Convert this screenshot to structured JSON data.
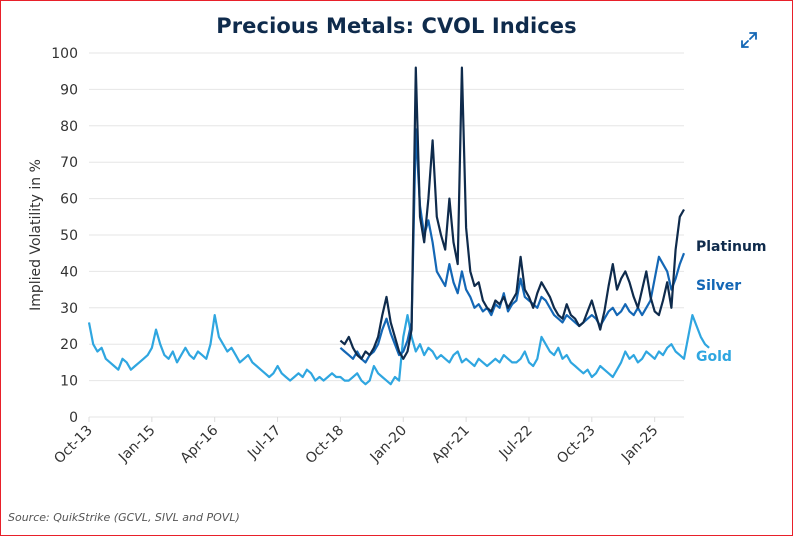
{
  "chart_data": {
    "type": "line",
    "title": "Precious Metals: CVOL Indices",
    "xlabel": "",
    "ylabel": "Implied Volatility in %",
    "ylim": [
      0,
      100
    ],
    "yticks": [
      0,
      10,
      20,
      30,
      40,
      50,
      60,
      70,
      80,
      90,
      100
    ],
    "xticks": [
      "Oct-13",
      "Jan-15",
      "Apr-16",
      "Jul-17",
      "Oct-18",
      "Jan-20",
      "Apr-21",
      "Jul-22",
      "Oct-23",
      "Jan-25"
    ],
    "x_start": "Oct-13",
    "x_end": "Aug-25",
    "x_unit": "months since Oct-13",
    "grid": true,
    "legend_placement": "right (inline labels at line ends)",
    "series": [
      {
        "name": "Platinum",
        "color": "#0f2b4c",
        "start_index": 60,
        "values": [
          21,
          20,
          22,
          19,
          17,
          16,
          18,
          17,
          19,
          22,
          28,
          33,
          26,
          22,
          18,
          16,
          18,
          24,
          96,
          55,
          48,
          60,
          76,
          55,
          50,
          46,
          60,
          48,
          42,
          96,
          52,
          40,
          36,
          37,
          32,
          30,
          29,
          32,
          31,
          33,
          30,
          32,
          34,
          44,
          35,
          33,
          30,
          34,
          37,
          35,
          33,
          30,
          28,
          27,
          31,
          28,
          27,
          25,
          26,
          29,
          32,
          28,
          24,
          29,
          36,
          42,
          35,
          38,
          40,
          37,
          33,
          30,
          35,
          40,
          33,
          29,
          28,
          32,
          37,
          30,
          46,
          55,
          57
        ]
      },
      {
        "name": "Silver",
        "color": "#1467b5",
        "start_index": 60,
        "values": [
          19,
          18,
          17,
          16,
          18,
          16,
          15,
          17,
          18,
          20,
          24,
          27,
          23,
          20,
          17,
          18,
          21,
          26,
          79,
          58,
          50,
          54,
          48,
          40,
          38,
          36,
          42,
          37,
          34,
          40,
          35,
          33,
          30,
          31,
          29,
          30,
          28,
          31,
          30,
          34,
          29,
          31,
          32,
          38,
          33,
          32,
          31,
          30,
          33,
          32,
          30,
          28,
          27,
          26,
          28,
          27,
          26,
          25,
          26,
          27,
          28,
          27,
          25,
          27,
          29,
          30,
          28,
          29,
          31,
          29,
          28,
          30,
          28,
          30,
          32,
          38,
          44,
          42,
          40,
          35,
          38,
          42,
          45
        ]
      },
      {
        "name": "Gold",
        "color": "#2fa6e0",
        "start_index": 0,
        "values": [
          26,
          20,
          18,
          19,
          16,
          15,
          14,
          13,
          16,
          15,
          13,
          14,
          15,
          16,
          17,
          19,
          24,
          20,
          17,
          16,
          18,
          15,
          17,
          19,
          17,
          16,
          18,
          17,
          16,
          20,
          28,
          22,
          20,
          18,
          19,
          17,
          15,
          16,
          17,
          15,
          14,
          13,
          12,
          11,
          12,
          14,
          12,
          11,
          10,
          11,
          12,
          11,
          13,
          12,
          10,
          11,
          10,
          11,
          12,
          11,
          11,
          10,
          10,
          11,
          12,
          10,
          9,
          10,
          14,
          12,
          11,
          10,
          9,
          11,
          10,
          22,
          28,
          22,
          18,
          20,
          17,
          19,
          18,
          16,
          17,
          16,
          15,
          17,
          18,
          15,
          16,
          15,
          14,
          16,
          15,
          14,
          15,
          16,
          15,
          17,
          16,
          15,
          15,
          16,
          18,
          15,
          14,
          16,
          22,
          20,
          18,
          17,
          19,
          16,
          17,
          15,
          14,
          13,
          12,
          13,
          11,
          12,
          14,
          13,
          12,
          11,
          13,
          15,
          18,
          16,
          17,
          15,
          16,
          18,
          17,
          16,
          18,
          17,
          19,
          20,
          18,
          17,
          16,
          22,
          28,
          25,
          22,
          20,
          19
        ]
      }
    ]
  },
  "header": {
    "title": "Precious Metals: CVOL Indices",
    "expand_icon": "expand-arrows-icon"
  },
  "footer": {
    "source": "Source: QuikStrike (GCVL, SIVL and POVL)"
  }
}
